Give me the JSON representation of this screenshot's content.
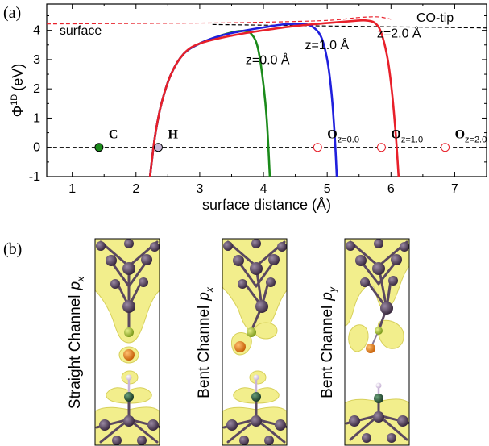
{
  "panel_a": {
    "label": "(a)",
    "chart_data": {
      "type": "line",
      "xlabel": "surface distance (Å)",
      "ylabel": "Φ",
      "ylabel_sup": "1D",
      "ylabel_unit": "(eV)",
      "xlim": [
        0.6,
        7.5
      ],
      "ylim": [
        -1,
        4.9
      ],
      "x_ticks": [
        1,
        2,
        3,
        4,
        5,
        6,
        7
      ],
      "y_ticks": [
        -1,
        0,
        1,
        2,
        3,
        4
      ],
      "grid": false,
      "reference_lines": [
        {
          "name": "surface",
          "color": "#e8202a",
          "style": "dashed",
          "points": [
            [
              0.6,
              4.22
            ],
            [
              3.0,
              4.25
            ],
            [
              4.0,
              4.28
            ],
            [
              5.0,
              4.34
            ],
            [
              5.5,
              4.44
            ],
            [
              5.8,
              4.46
            ],
            [
              6.0,
              4.38
            ]
          ]
        },
        {
          "name": "CO-tip",
          "color": "#000000",
          "style": "dashed",
          "points": [
            [
              3.2,
              4.2
            ],
            [
              7.5,
              4.08
            ]
          ]
        },
        {
          "name": "zero",
          "color": "#000000",
          "style": "dashed",
          "points": [
            [
              0.6,
              0
            ],
            [
              7.5,
              0
            ]
          ]
        }
      ],
      "series": [
        {
          "name": "z=0.0 Å",
          "color": "#1a8a1a",
          "points": [
            [
              2.22,
              -1
            ],
            [
              2.3,
              0.4
            ],
            [
              2.4,
              1.5
            ],
            [
              2.55,
              2.5
            ],
            [
              2.75,
              3.2
            ],
            [
              3.0,
              3.55
            ],
            [
              3.3,
              3.8
            ],
            [
              3.55,
              3.95
            ],
            [
              3.7,
              3.98
            ],
            [
              3.8,
              3.9
            ],
            [
              3.9,
              3.5
            ],
            [
              3.98,
              2.5
            ],
            [
              4.05,
              1.0
            ],
            [
              4.1,
              -1
            ]
          ]
        },
        {
          "name": "z=1.0 Å",
          "color": "#1f1fdd",
          "points": [
            [
              2.22,
              -1
            ],
            [
              2.3,
              0.4
            ],
            [
              2.4,
              1.5
            ],
            [
              2.55,
              2.5
            ],
            [
              2.75,
              3.2
            ],
            [
              3.0,
              3.55
            ],
            [
              3.3,
              3.8
            ],
            [
              3.6,
              3.95
            ],
            [
              4.0,
              4.1
            ],
            [
              4.3,
              4.2
            ],
            [
              4.55,
              4.22
            ],
            [
              4.75,
              4.15
            ],
            [
              4.9,
              3.8
            ],
            [
              5.0,
              3.0
            ],
            [
              5.07,
              1.8
            ],
            [
              5.12,
              0.3
            ],
            [
              5.15,
              -1
            ]
          ]
        },
        {
          "name": "z=2.0 Å",
          "color": "#e8202a",
          "points": [
            [
              2.22,
              -1
            ],
            [
              2.3,
              0.4
            ],
            [
              2.4,
              1.5
            ],
            [
              2.55,
              2.5
            ],
            [
              2.75,
              3.2
            ],
            [
              3.0,
              3.55
            ],
            [
              3.5,
              3.82
            ],
            [
              4.0,
              4.0
            ],
            [
              4.5,
              4.15
            ],
            [
              5.0,
              4.25
            ],
            [
              5.4,
              4.32
            ],
            [
              5.6,
              4.34
            ],
            [
              5.75,
              4.25
            ],
            [
              5.85,
              3.9
            ],
            [
              5.95,
              3.0
            ],
            [
              6.02,
              1.8
            ],
            [
              6.08,
              0.3
            ],
            [
              6.12,
              -1
            ]
          ]
        }
      ],
      "atoms": [
        {
          "label": "C",
          "subscript": "",
          "x": 1.42,
          "y": 0,
          "fill": "#1a8a1a",
          "stroke": "#000000"
        },
        {
          "label": "H",
          "subscript": "",
          "x": 2.35,
          "y": 0,
          "fill": "#c8b8d8",
          "stroke": "#000000"
        },
        {
          "label": "O",
          "subscript": "z=0.0",
          "x": 4.85,
          "y": 0,
          "fill": "#ffffff",
          "stroke": "#e8202a"
        },
        {
          "label": "O",
          "subscript": "z=1.0",
          "x": 5.85,
          "y": 0,
          "fill": "#ffffff",
          "stroke": "#e8202a"
        },
        {
          "label": "O",
          "subscript": "z=2.0",
          "x": 6.85,
          "y": 0,
          "fill": "#ffffff",
          "stroke": "#e8202a"
        }
      ],
      "annotations": [
        {
          "text": "surface",
          "x": 0.8,
          "y": 3.85
        },
        {
          "text": "CO-tip",
          "x": 6.4,
          "y": 4.3
        },
        {
          "text": "z=0.0 Å",
          "x": 3.72,
          "y": 2.85
        },
        {
          "text": "z=1.0 Å",
          "x": 4.65,
          "y": 3.35
        },
        {
          "text": "z=2.0 Å",
          "x": 5.78,
          "y": 3.75
        }
      ]
    }
  },
  "panel_b": {
    "label": "(b)",
    "columns": [
      {
        "label": "Straight Channel",
        "subscript": "x"
      },
      {
        "label": "Bent Channel",
        "subscript": "x"
      },
      {
        "label": "Bent Channel",
        "subscript": "y"
      }
    ],
    "colors": {
      "cloud": "#f2ee8c",
      "cloud_edge": "#d7d05a",
      "metal_atom": "#4a3850",
      "bond": "#5a4860",
      "o_atom": "#e07f1a",
      "c_atom": "#9ab32a",
      "n_atom": "#2c5a3c",
      "h_atom": "#eeeef4"
    }
  }
}
